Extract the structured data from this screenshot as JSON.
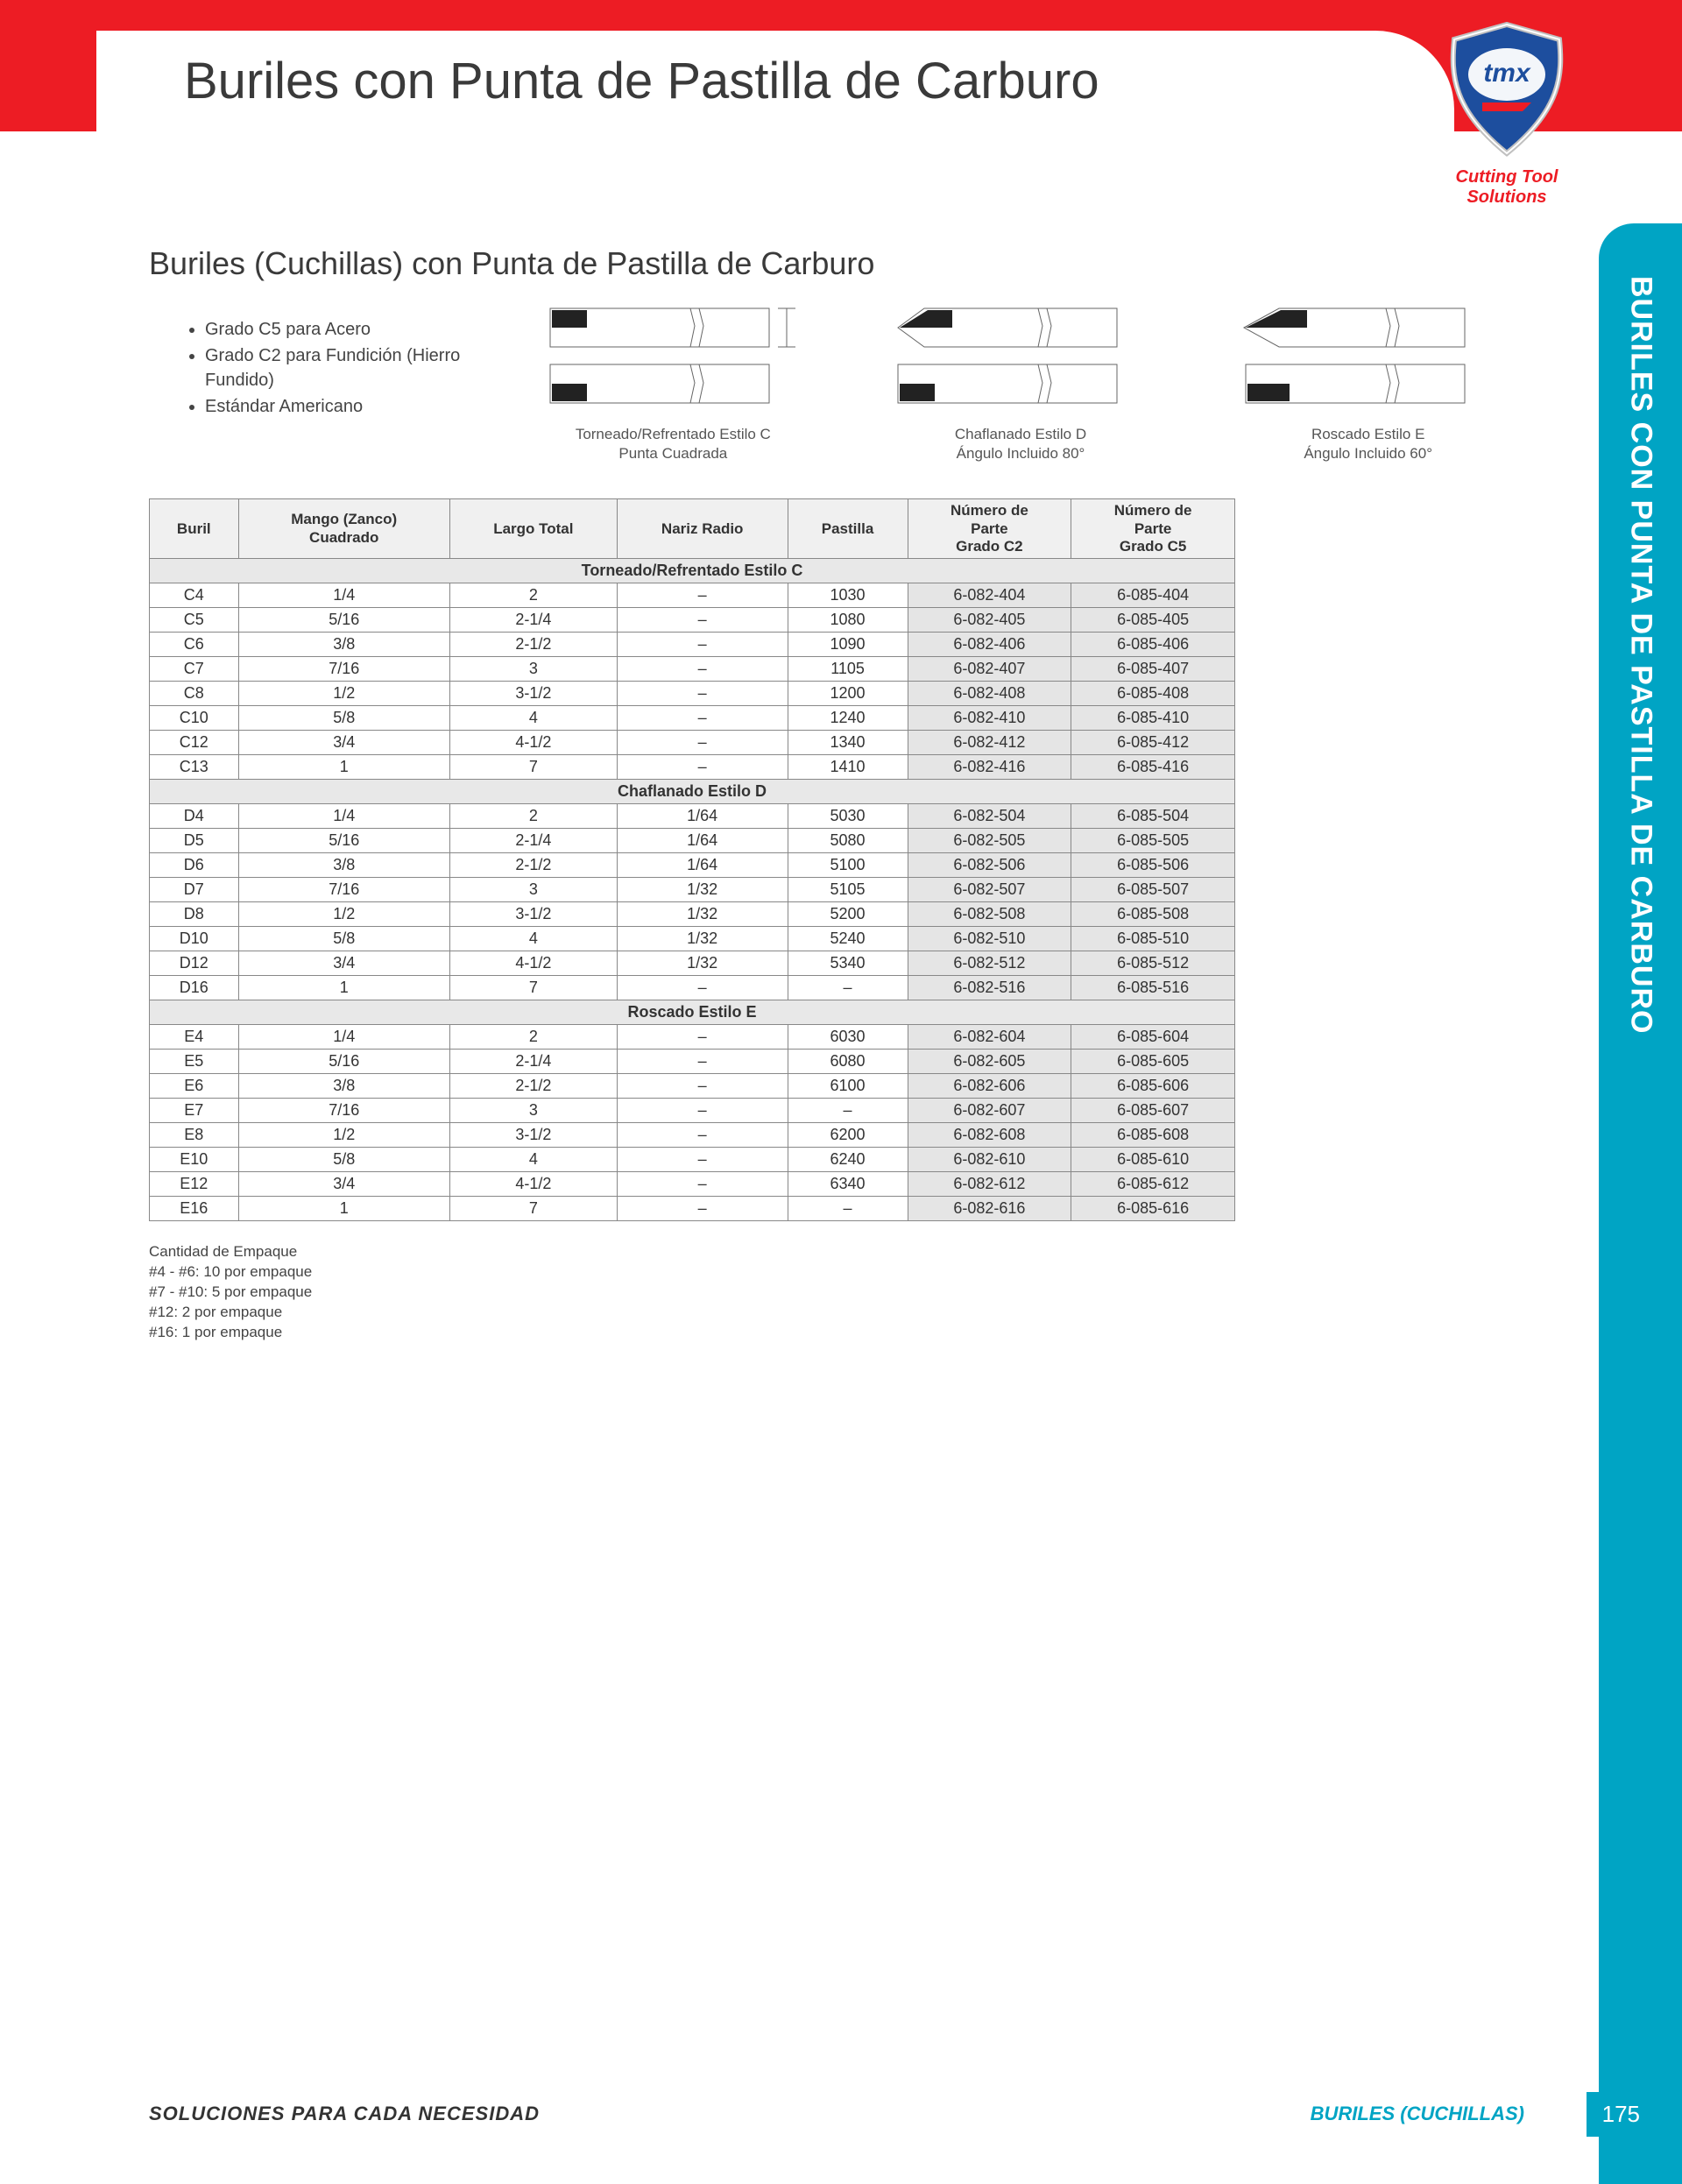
{
  "header": {
    "title": "Buriles con Punta de Pastilla de Carburo",
    "logo_line1": "Cutting Tool",
    "logo_line2": "Solutions",
    "logo_brand": "tmx"
  },
  "side_tab": "BURILES CON PUNTA DE PASTILLA DE CARBURO",
  "subtitle": "Buriles (Cuchillas) con Punta de Pastilla de Carburo",
  "bullets": [
    "Grado C5 para Acero",
    "Grado C2 para Fundición (Hierro Fundido)",
    "Estándar Americano"
  ],
  "diagrams": [
    {
      "caption1": "Torneado/Refrentado Estilo C",
      "caption2": "Punta Cuadrada"
    },
    {
      "caption1": "Chaflanado Estilo D",
      "caption2": "Ángulo Incluido 80°"
    },
    {
      "caption1": "Roscado Estilo E",
      "caption2": "Ángulo Incluido 60°"
    }
  ],
  "table": {
    "columns": [
      "Buril",
      "Mango (Zanco) Cuadrado",
      "Largo Total",
      "Nariz Radio",
      "Pastilla",
      "Número de Parte Grado C2",
      "Número de Parte Grado C5"
    ],
    "sections": [
      {
        "title": "Torneado/Refrentado Estilo C",
        "rows": [
          [
            "C4",
            "1/4",
            "2",
            "–",
            "1030",
            "6-082-404",
            "6-085-404"
          ],
          [
            "C5",
            "5/16",
            "2-1/4",
            "–",
            "1080",
            "6-082-405",
            "6-085-405"
          ],
          [
            "C6",
            "3/8",
            "2-1/2",
            "–",
            "1090",
            "6-082-406",
            "6-085-406"
          ],
          [
            "C7",
            "7/16",
            "3",
            "–",
            "1105",
            "6-082-407",
            "6-085-407"
          ],
          [
            "C8",
            "1/2",
            "3-1/2",
            "–",
            "1200",
            "6-082-408",
            "6-085-408"
          ],
          [
            "C10",
            "5/8",
            "4",
            "–",
            "1240",
            "6-082-410",
            "6-085-410"
          ],
          [
            "C12",
            "3/4",
            "4-1/2",
            "–",
            "1340",
            "6-082-412",
            "6-085-412"
          ],
          [
            "C13",
            "1",
            "7",
            "–",
            "1410",
            "6-082-416",
            "6-085-416"
          ]
        ]
      },
      {
        "title": "Chaflanado Estilo D",
        "rows": [
          [
            "D4",
            "1/4",
            "2",
            "1/64",
            "5030",
            "6-082-504",
            "6-085-504"
          ],
          [
            "D5",
            "5/16",
            "2-1/4",
            "1/64",
            "5080",
            "6-082-505",
            "6-085-505"
          ],
          [
            "D6",
            "3/8",
            "2-1/2",
            "1/64",
            "5100",
            "6-082-506",
            "6-085-506"
          ],
          [
            "D7",
            "7/16",
            "3",
            "1/32",
            "5105",
            "6-082-507",
            "6-085-507"
          ],
          [
            "D8",
            "1/2",
            "3-1/2",
            "1/32",
            "5200",
            "6-082-508",
            "6-085-508"
          ],
          [
            "D10",
            "5/8",
            "4",
            "1/32",
            "5240",
            "6-082-510",
            "6-085-510"
          ],
          [
            "D12",
            "3/4",
            "4-1/2",
            "1/32",
            "5340",
            "6-082-512",
            "6-085-512"
          ],
          [
            "D16",
            "1",
            "7",
            "–",
            "–",
            "6-082-516",
            "6-085-516"
          ]
        ]
      },
      {
        "title": "Roscado Estilo E",
        "rows": [
          [
            "E4",
            "1/4",
            "2",
            "–",
            "6030",
            "6-082-604",
            "6-085-604"
          ],
          [
            "E5",
            "5/16",
            "2-1/4",
            "–",
            "6080",
            "6-082-605",
            "6-085-605"
          ],
          [
            "E6",
            "3/8",
            "2-1/2",
            "–",
            "6100",
            "6-082-606",
            "6-085-606"
          ],
          [
            "E7",
            "7/16",
            "3",
            "–",
            "–",
            "6-082-607",
            "6-085-607"
          ],
          [
            "E8",
            "1/2",
            "3-1/2",
            "–",
            "6200",
            "6-082-608",
            "6-085-608"
          ],
          [
            "E10",
            "5/8",
            "4",
            "–",
            "6240",
            "6-082-610",
            "6-085-610"
          ],
          [
            "E12",
            "3/4",
            "4-1/2",
            "–",
            "6340",
            "6-082-612",
            "6-085-612"
          ],
          [
            "E16",
            "1",
            "7",
            "–",
            "–",
            "6-082-616",
            "6-085-616"
          ]
        ]
      }
    ]
  },
  "pack_note": {
    "title": "Cantidad de Empaque",
    "lines": [
      "#4 - #6: 10 por empaque",
      "#7 - #10: 5 por empaque",
      "#12: 2 por empaque",
      "#16: 1 por empaque"
    ]
  },
  "footer": {
    "left": "SOLUCIONES PARA CADA NECESIDAD",
    "right": "BURILES (CUCHILLAS)",
    "page": "175"
  },
  "colors": {
    "red": "#ed1c24",
    "teal": "#00a4c4",
    "grey_cell": "#e5e5e5"
  }
}
